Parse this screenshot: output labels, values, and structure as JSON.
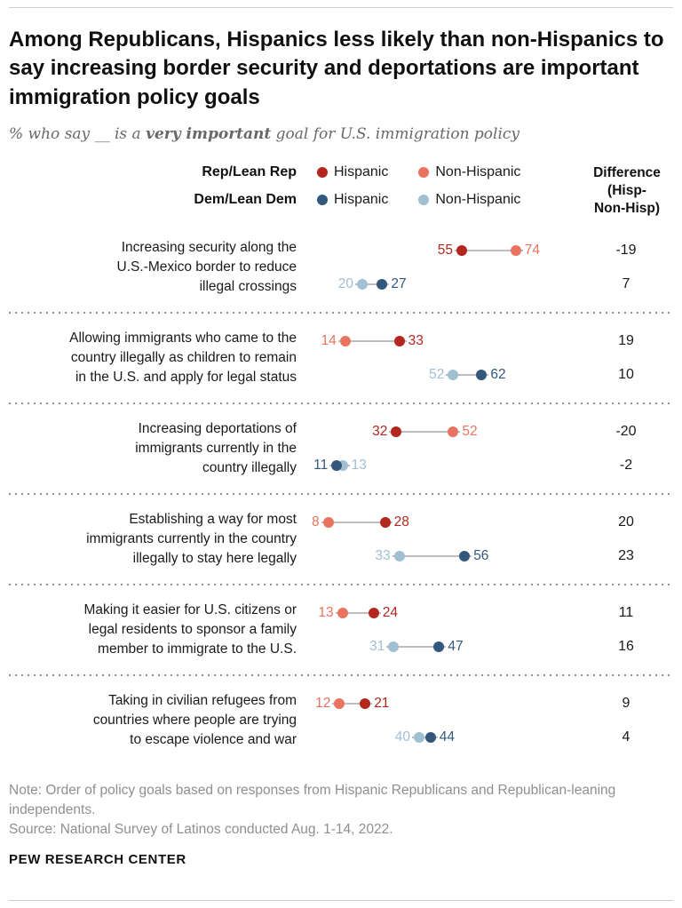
{
  "title": "Among Republicans, Hispanics less likely than non-Hispanics to say increasing border security and deportations are important immigration policy goals",
  "subtitle": {
    "prefix": "% who say __ is a ",
    "bold": "very important",
    "suffix": " goal for U.S. immigration policy"
  },
  "legend": {
    "rep_label": "Rep/Lean Rep",
    "dem_label": "Dem/Lean Dem",
    "hispanic_label": "Hispanic",
    "non_hispanic_label": "Non-Hispanic"
  },
  "diff_header": [
    "Difference",
    "(Hisp-",
    "Non-Hisp)"
  ],
  "colors": {
    "rep_hispanic": "#b3271e",
    "rep_non_hispanic": "#ea7360",
    "dem_hispanic": "#33587c",
    "dem_non_hispanic": "#a0bfd3",
    "line": "#bdbdbd"
  },
  "chart_data": {
    "type": "dot-plot",
    "unit": "percent saying very important",
    "x_range": [
      0,
      100
    ],
    "series_names": [
      "Rep/Lean Rep Hispanic",
      "Rep/Lean Rep Non-Hispanic",
      "Dem/Lean Dem Hispanic",
      "Dem/Lean Dem Non-Hispanic"
    ],
    "rows": [
      {
        "label_lines": [
          "Increasing security along the",
          "U.S.-Mexico border to reduce",
          "illegal crossings"
        ],
        "rep": {
          "hispanic": 55,
          "non_hispanic": 74,
          "diff": "-19"
        },
        "dem": {
          "hispanic": 27,
          "non_hispanic": 20,
          "diff": "7"
        }
      },
      {
        "label_lines": [
          "Allowing immigrants who came to the",
          "country illegally as children to remain",
          "in the U.S. and apply for legal status"
        ],
        "rep": {
          "hispanic": 33,
          "non_hispanic": 14,
          "diff": "19"
        },
        "dem": {
          "hispanic": 62,
          "non_hispanic": 52,
          "diff": "10"
        }
      },
      {
        "label_lines": [
          "Increasing deportations of",
          "immigrants currently in the",
          "country illegally"
        ],
        "rep": {
          "hispanic": 32,
          "non_hispanic": 52,
          "diff": "-20"
        },
        "dem": {
          "hispanic": 11,
          "non_hispanic": 13,
          "diff": "-2"
        }
      },
      {
        "label_lines": [
          "Establishing a way for most",
          "immigrants currently in the country",
          "illegally to stay here legally"
        ],
        "rep": {
          "hispanic": 28,
          "non_hispanic": 8,
          "diff": "20"
        },
        "dem": {
          "hispanic": 56,
          "non_hispanic": 33,
          "diff": "23"
        }
      },
      {
        "label_lines": [
          "Making it easier for U.S. citizens or",
          "legal residents to sponsor a family",
          "member to immigrate to the U.S."
        ],
        "rep": {
          "hispanic": 24,
          "non_hispanic": 13,
          "diff": "11"
        },
        "dem": {
          "hispanic": 47,
          "non_hispanic": 31,
          "diff": "16"
        }
      },
      {
        "label_lines": [
          "Taking in civilian refugees from",
          "countries where people are trying",
          "to escape violence and war"
        ],
        "rep": {
          "hispanic": 21,
          "non_hispanic": 12,
          "diff": "9"
        },
        "dem": {
          "hispanic": 44,
          "non_hispanic": 40,
          "diff": "4"
        }
      }
    ]
  },
  "note": "Note: Order of policy goals based on responses from Hispanic Republicans and Republican-leaning independents.",
  "source": "Source: National Survey of Latinos conducted Aug. 1-14, 2022.",
  "footer": "PEW RESEARCH CENTER"
}
